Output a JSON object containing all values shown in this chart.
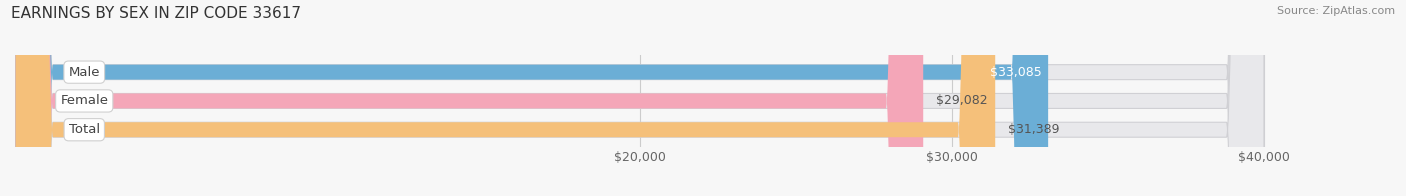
{
  "title": "EARNINGS BY SEX IN ZIP CODE 33617",
  "source": "Source: ZipAtlas.com",
  "categories": [
    "Male",
    "Female",
    "Total"
  ],
  "values": [
    33085,
    29082,
    31389
  ],
  "bar_colors": [
    "#6baed6",
    "#f4a6b8",
    "#f5c07a"
  ],
  "bar_bg_color": "#e8e8eb",
  "xmin": 20000,
  "xmax": 40000,
  "xticks": [
    20000,
    30000,
    40000
  ],
  "xtick_labels": [
    "$20,000",
    "$30,000",
    "$40,000"
  ],
  "title_fontsize": 11,
  "bar_label_fontsize": 9,
  "axis_fontsize": 9,
  "source_fontsize": 8,
  "background_color": "#f7f7f7",
  "bar_height": 0.52,
  "label_inside_color": "#ffffff",
  "label_outside_color": "#555555"
}
